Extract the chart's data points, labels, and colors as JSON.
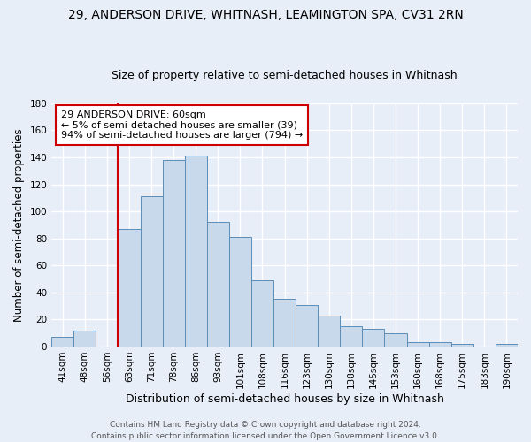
{
  "title": "29, ANDERSON DRIVE, WHITNASH, LEAMINGTON SPA, CV31 2RN",
  "subtitle": "Size of property relative to semi-detached houses in Whitnash",
  "xlabel": "Distribution of semi-detached houses by size in Whitnash",
  "ylabel": "Number of semi-detached properties",
  "bin_labels": [
    "41sqm",
    "48sqm",
    "56sqm",
    "63sqm",
    "71sqm",
    "78sqm",
    "86sqm",
    "93sqm",
    "101sqm",
    "108sqm",
    "116sqm",
    "123sqm",
    "130sqm",
    "138sqm",
    "145sqm",
    "153sqm",
    "160sqm",
    "168sqm",
    "175sqm",
    "183sqm",
    "190sqm"
  ],
  "bar_values": [
    7,
    12,
    0,
    87,
    111,
    138,
    141,
    92,
    81,
    49,
    35,
    31,
    23,
    15,
    13,
    10,
    3,
    3,
    2,
    0,
    2
  ],
  "bar_color": "#c9d9ec",
  "bar_edge_color": "#5b8db8",
  "background_color": "#e8eef8",
  "ylim": [
    0,
    180
  ],
  "yticks": [
    0,
    20,
    40,
    60,
    80,
    100,
    120,
    140,
    160,
    180
  ],
  "vline_x_index": 3,
  "vline_color": "#cc0000",
  "annotation_title": "29 ANDERSON DRIVE: 60sqm",
  "annotation_line1": "← 5% of semi-detached houses are smaller (39)",
  "annotation_line2": "94% of semi-detached houses are larger (794) →",
  "annotation_box_facecolor": "#ffffff",
  "annotation_box_edgecolor": "#cc0000",
  "footer_line1": "Contains HM Land Registry data © Crown copyright and database right 2024.",
  "footer_line2": "Contains public sector information licensed under the Open Government Licence v3.0.",
  "title_fontsize": 10,
  "subtitle_fontsize": 9,
  "xlabel_fontsize": 9,
  "ylabel_fontsize": 8.5,
  "tick_fontsize": 7.5,
  "annotation_fontsize": 8,
  "footer_fontsize": 6.5,
  "grid_color": "#ffffff",
  "grid_linewidth": 1.0
}
